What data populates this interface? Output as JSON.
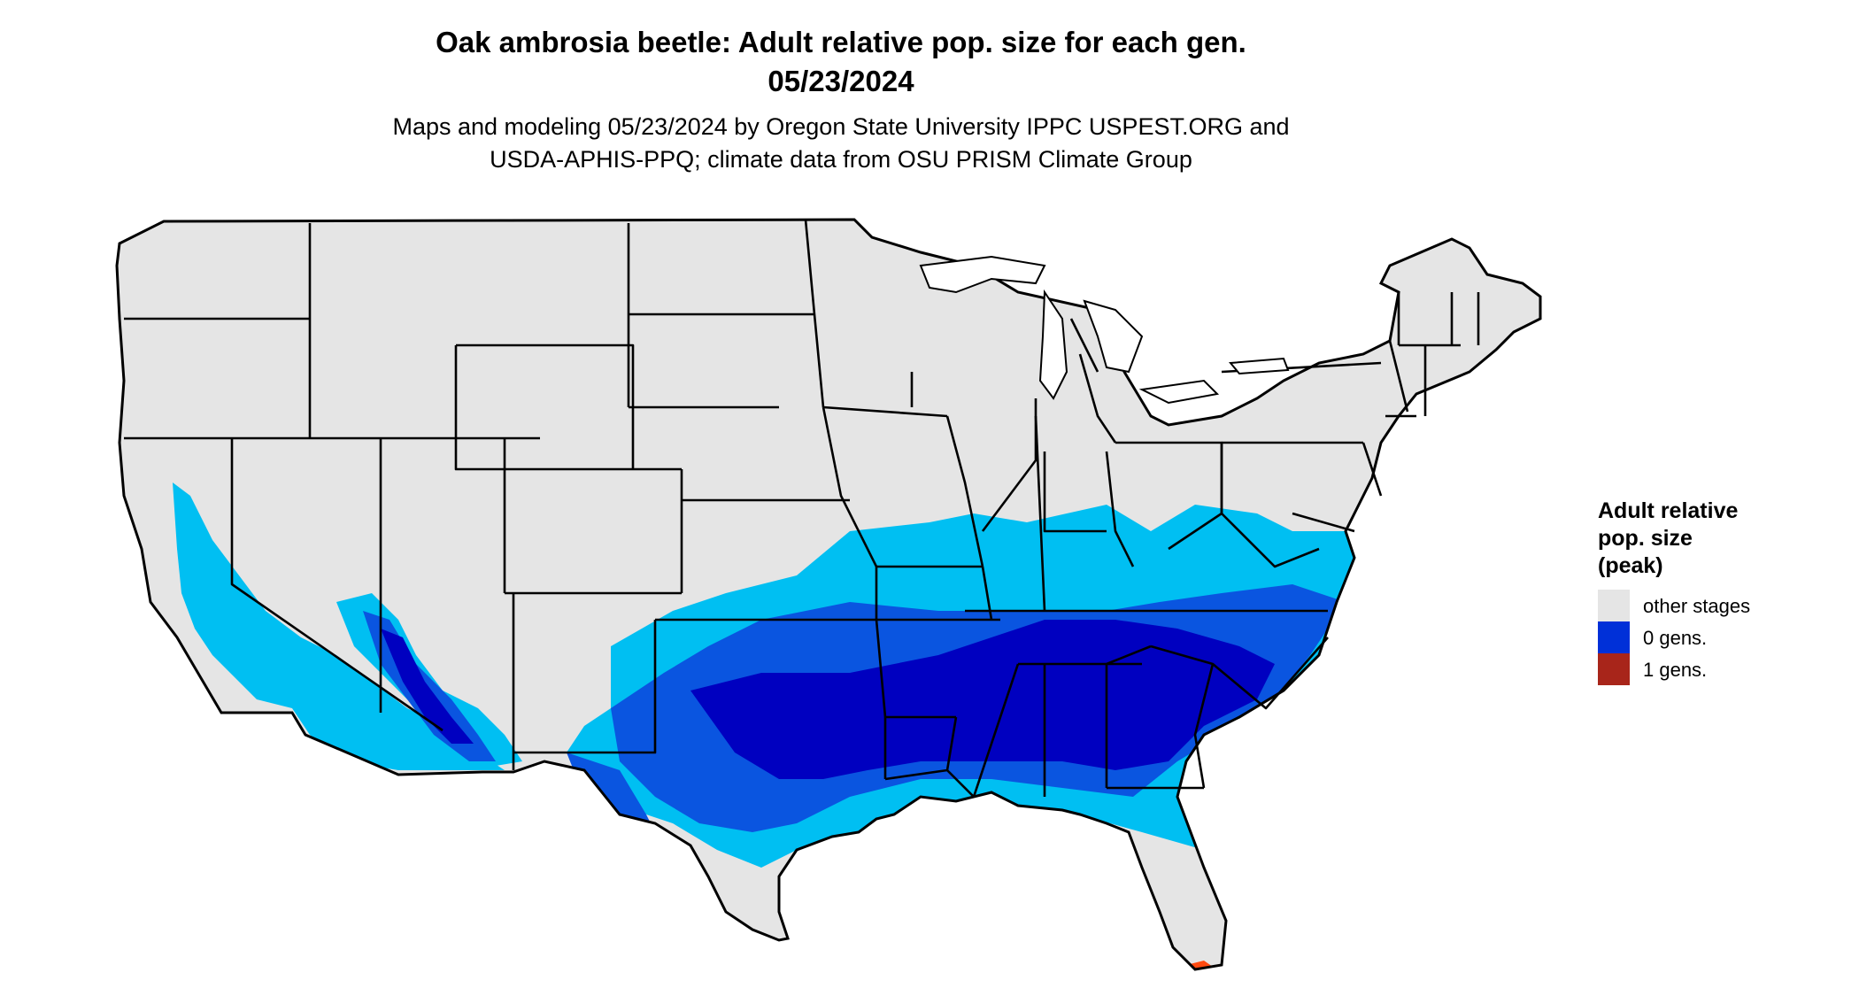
{
  "title": {
    "line1": "Oak ambrosia beetle: Adult relative pop. size for each gen.",
    "line2": "05/23/2024"
  },
  "subtitle": {
    "line1": "Maps and modeling 05/23/2024 by Oregon State University IPPC USPEST.ORG and",
    "line2": "USDA-APHIS-PPQ; climate data from OSU PRISM Climate Group"
  },
  "legend": {
    "title_line1": "Adult relative",
    "title_line2": "pop. size",
    "title_line3": "(peak)",
    "items": [
      {
        "label": "other stages",
        "color": "#e5e5e5"
      },
      {
        "label": "0 gens.",
        "color": "#0030d8"
      },
      {
        "label": "1 gens.",
        "color": "#a8251a"
      }
    ]
  },
  "map": {
    "region": "contiguous-united-states",
    "background_color": "#e5e5e5",
    "border_color": "#000000",
    "intensity_colors": {
      "light": "#00bff2",
      "medium": "#0a55e0",
      "dark": "#0000c0",
      "hot": "#ff4a10"
    }
  }
}
